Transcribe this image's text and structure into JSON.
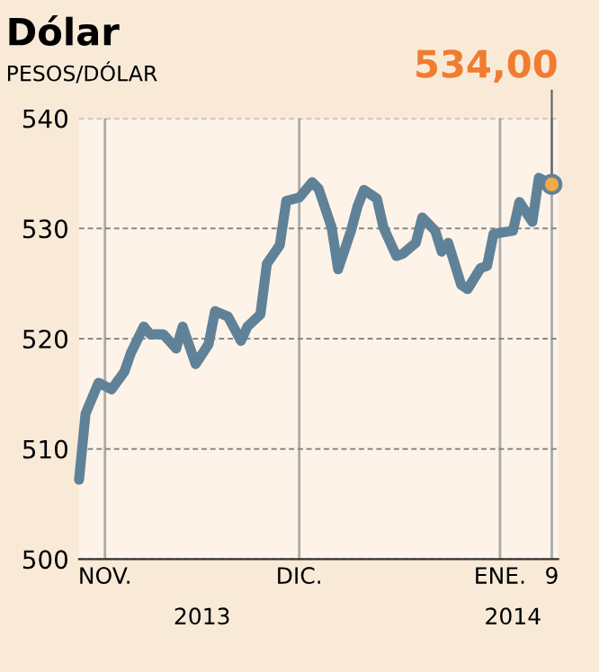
{
  "chart_data": {
    "type": "line",
    "title": "Dólar",
    "subtitle": "PESOS/DÓLAR",
    "x": [
      "2013-10-28",
      "2013-10-29",
      "2013-10-31",
      "2013-11-02",
      "2013-11-04",
      "2013-11-05",
      "2013-11-07",
      "2013-11-08",
      "2013-11-10",
      "2013-11-12",
      "2013-11-13",
      "2013-11-15",
      "2013-11-17",
      "2013-11-18",
      "2013-11-20",
      "2013-11-22",
      "2013-11-23",
      "2013-11-25",
      "2013-11-26",
      "2013-11-28",
      "2013-11-29",
      "2013-12-01",
      "2013-12-03",
      "2013-12-04",
      "2013-12-06",
      "2013-12-07",
      "2013-12-09",
      "2013-12-10",
      "2013-12-11",
      "2013-12-13",
      "2013-12-14",
      "2013-12-16",
      "2013-12-17",
      "2013-12-19",
      "2013-12-20",
      "2013-12-22",
      "2013-12-23",
      "2013-12-24",
      "2013-12-26",
      "2013-12-27",
      "2013-12-29",
      "2013-12-30",
      "2013-12-31",
      "2014-01-03",
      "2014-01-04",
      "2014-01-06",
      "2014-01-07",
      "2014-01-09"
    ],
    "series": [
      {
        "color": "#5f8298",
        "values": [
          507.2,
          513.2,
          516.0,
          515.4,
          517.0,
          518.7,
          521.1,
          520.4,
          520.4,
          519.1,
          521.1,
          517.7,
          519.5,
          522.5,
          522.0,
          519.8,
          521.1,
          522.2,
          526.8,
          528.5,
          532.5,
          532.8,
          534.2,
          533.6,
          530.1,
          526.3,
          529.8,
          532.0,
          533.5,
          532.7,
          530.1,
          527.5,
          527.7,
          528.7,
          531.0,
          529.8,
          527.9,
          528.7,
          524.9,
          524.5,
          526.4,
          526.6,
          529.5,
          529.8,
          532.4,
          530.6,
          534.6,
          534.0
        ],
        "value_labels": [
          null,
          null,
          null,
          null,
          null,
          null,
          null,
          null,
          null,
          null,
          null,
          null,
          null,
          null,
          null,
          null,
          null,
          null,
          null,
          null,
          null,
          null,
          null,
          null,
          null,
          null,
          null,
          null,
          null,
          null,
          null,
          null,
          null,
          null,
          null,
          null,
          null,
          null,
          null,
          null,
          null,
          null,
          null,
          null,
          null,
          null,
          null,
          "534,00"
        ]
      }
    ],
    "xlim": [
      "2013-10-28",
      "2014-01-10"
    ],
    "ylim": [
      500,
      540
    ],
    "xticks": [
      {
        "value": "2013-11-01",
        "label": "NOV."
      },
      {
        "value": "2013-12-01",
        "label": "DIC."
      },
      {
        "value": "2014-01-01",
        "label": "ENE."
      },
      {
        "value": "2014-01-09",
        "label": "9"
      }
    ],
    "yticks": [
      500,
      510,
      520,
      530,
      540
    ],
    "annotations": [
      "2013",
      "2014"
    ],
    "grid": true,
    "line_style": "solid"
  }
}
